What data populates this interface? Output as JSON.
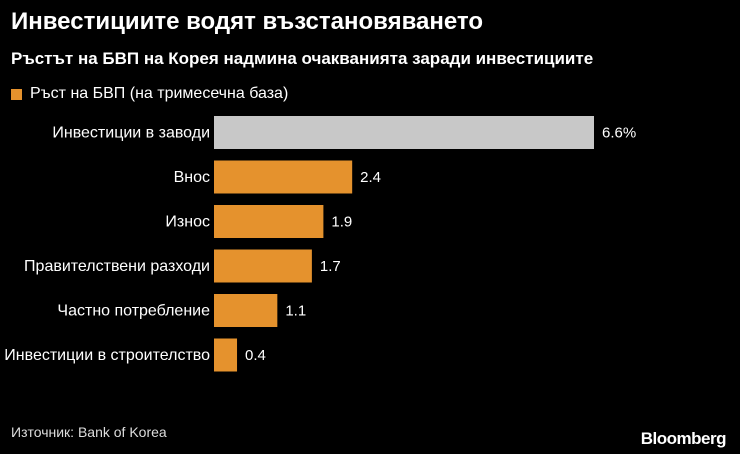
{
  "title": "Инвестициите водят възстановяването",
  "subtitle": "Ръстът на БВП на Корея надмина очакванията заради инвестициите",
  "source": "Източник: Bank of Korea",
  "brand": "Bloomberg",
  "chart_data": {
    "type": "bar",
    "orientation": "horizontal",
    "categories": [
      "Инвестиции в заводи",
      "Внос",
      "Износ",
      "Правителствени разходи",
      "Частно потребление",
      "Инвестиции в строителство"
    ],
    "series": [
      {
        "name": "Ръст на БВП (на тримесечна база)",
        "values": [
          6.6,
          2.4,
          1.9,
          1.7,
          1.1,
          0.4
        ],
        "labels": [
          "6.6%",
          "2.4",
          "1.9",
          "1.7",
          "1.1",
          "0.4"
        ]
      }
    ],
    "colors": {
      "highlight": "#c8c8c8",
      "default": "#e5922d"
    },
    "highlight_index": 0,
    "xlim": [
      0,
      6.6
    ],
    "grid": false
  }
}
